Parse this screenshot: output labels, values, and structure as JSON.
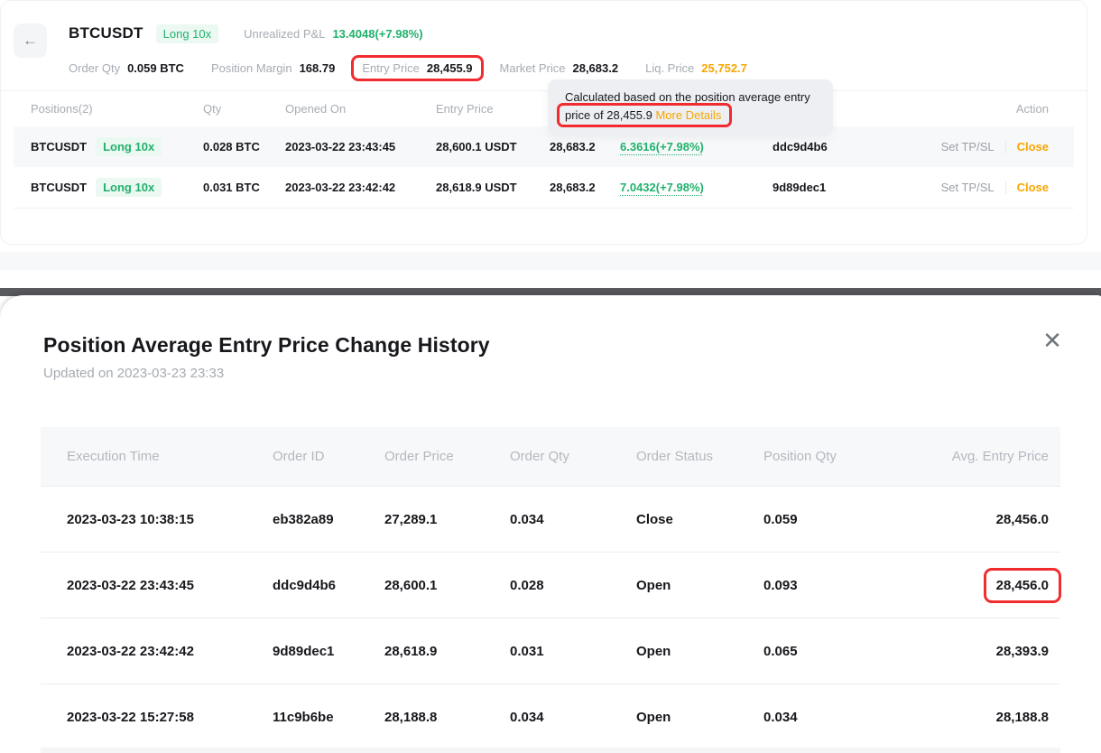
{
  "colors": {
    "green": "#20b26c",
    "orange": "#f7a600",
    "annotation_red": "#f12b2e"
  },
  "position_header": {
    "back_icon": "←",
    "symbol": "BTCUSDT",
    "side_badge": "Long 10x",
    "upl_label": "Unrealized P&L",
    "upl_value": "13.4048(+7.98%)",
    "stats": {
      "order_qty_label": "Order Qty",
      "order_qty_value": "0.059 BTC",
      "margin_label": "Position Margin",
      "margin_value": "168.79",
      "entry_label": "Entry Price",
      "entry_value": "28,455.9",
      "market_label": "Market Price",
      "market_value": "28,683.2",
      "liq_label": "Liq. Price",
      "liq_value": "25,752.7"
    }
  },
  "tooltip": {
    "line1": "Calculated based on the position average entry",
    "line2_prefix": "price of 28,455.9 ",
    "link": "More Details"
  },
  "positions_table": {
    "headers": {
      "positions": "Positions(2)",
      "qty": "Qty",
      "opened": "Opened On",
      "entry": "Entry Price",
      "action": "Action"
    },
    "rows": [
      {
        "symbol": "BTCUSDT",
        "badge": "Long 10x",
        "qty": "0.028 BTC",
        "opened": "2023-03-22 23:43:45",
        "entry": "28,600.1 USDT",
        "market": "28,683.2",
        "pnl": "6.3616(+7.98%)",
        "order_id": "ddc9d4b6",
        "set_tpsl": "Set TP/SL",
        "close": "Close"
      },
      {
        "symbol": "BTCUSDT",
        "badge": "Long 10x",
        "qty": "0.031 BTC",
        "opened": "2023-03-22 23:42:42",
        "entry": "28,618.9 USDT",
        "market": "28,683.2",
        "pnl": "7.0432(+7.98%)",
        "order_id": "9d89dec1",
        "set_tpsl": "Set TP/SL",
        "close": "Close"
      }
    ]
  },
  "modal": {
    "title": "Position Average Entry Price Change History",
    "updated": "Updated on 2023-03-23 23:33",
    "close_icon": "✕",
    "table": {
      "headers": {
        "execution_time": "Execution Time",
        "order_id": "Order ID",
        "order_price": "Order Price",
        "order_qty": "Order Qty",
        "order_status": "Order Status",
        "position_qty": "Position Qty",
        "avg_entry_price": "Avg. Entry Price"
      },
      "rows": [
        {
          "time": "2023-03-23 10:38:15",
          "id": "eb382a89",
          "price": "27,289.1",
          "qty": "0.034",
          "status": "Close",
          "pos_qty": "0.059",
          "avg": "28,456.0"
        },
        {
          "time": "2023-03-22 23:43:45",
          "id": "ddc9d4b6",
          "price": "28,600.1",
          "qty": "0.028",
          "status": "Open",
          "pos_qty": "0.093",
          "avg": "28,456.0"
        },
        {
          "time": "2023-03-22 23:42:42",
          "id": "9d89dec1",
          "price": "28,618.9",
          "qty": "0.031",
          "status": "Open",
          "pos_qty": "0.065",
          "avg": "28,393.9"
        },
        {
          "time": "2023-03-22 15:27:58",
          "id": "11c9b6be",
          "price": "28,188.8",
          "qty": "0.034",
          "status": "Open",
          "pos_qty": "0.034",
          "avg": "28,188.8"
        }
      ]
    }
  }
}
